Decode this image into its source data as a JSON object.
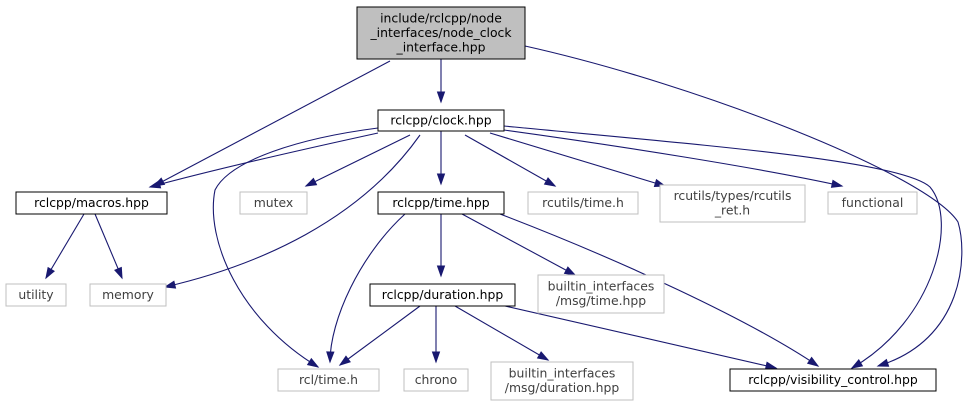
{
  "colors": {
    "edge": "#191970",
    "root_fill": "#bfbfbf",
    "local_border": "#000000",
    "external_border": "#bfbfbf",
    "text": "#000000"
  },
  "nodes": [
    {
      "id": "node_clock_interface",
      "kind": "root",
      "lines": [
        "include/rclcpp/node",
        "_interfaces/node_clock",
        "_interface.hpp"
      ]
    },
    {
      "id": "clock",
      "kind": "local",
      "lines": [
        "rclcpp/clock.hpp"
      ]
    },
    {
      "id": "macros",
      "kind": "local",
      "lines": [
        "rclcpp/macros.hpp"
      ]
    },
    {
      "id": "mutex",
      "kind": "external",
      "lines": [
        "mutex"
      ]
    },
    {
      "id": "time_hpp",
      "kind": "local",
      "lines": [
        "rclcpp/time.hpp"
      ]
    },
    {
      "id": "rcutils_time",
      "kind": "external",
      "lines": [
        "rcutils/time.h"
      ]
    },
    {
      "id": "rcutils_ret",
      "kind": "external",
      "lines": [
        "rcutils/types/rcutils",
        "_ret.h"
      ]
    },
    {
      "id": "functional",
      "kind": "external",
      "lines": [
        "functional"
      ]
    },
    {
      "id": "utility",
      "kind": "external",
      "lines": [
        "utility"
      ]
    },
    {
      "id": "memory",
      "kind": "external",
      "lines": [
        "memory"
      ]
    },
    {
      "id": "duration",
      "kind": "local",
      "lines": [
        "rclcpp/duration.hpp"
      ]
    },
    {
      "id": "bi_time",
      "kind": "external",
      "lines": [
        "builtin_interfaces",
        "/msg/time.hpp"
      ]
    },
    {
      "id": "rcl_time",
      "kind": "external",
      "lines": [
        "rcl/time.h"
      ]
    },
    {
      "id": "chrono",
      "kind": "external",
      "lines": [
        "chrono"
      ]
    },
    {
      "id": "bi_duration",
      "kind": "external",
      "lines": [
        "builtin_interfaces",
        "/msg/duration.hpp"
      ]
    },
    {
      "id": "visibility",
      "kind": "local",
      "lines": [
        "rclcpp/visibility_control.hpp"
      ]
    }
  ],
  "edges": [
    {
      "from": "node_clock_interface",
      "to": "clock"
    },
    {
      "from": "node_clock_interface",
      "to": "macros"
    },
    {
      "from": "node_clock_interface",
      "to": "visibility"
    },
    {
      "from": "clock",
      "to": "macros"
    },
    {
      "from": "clock",
      "to": "mutex"
    },
    {
      "from": "clock",
      "to": "time_hpp"
    },
    {
      "from": "clock",
      "to": "rcutils_time"
    },
    {
      "from": "clock",
      "to": "rcutils_ret"
    },
    {
      "from": "clock",
      "to": "functional"
    },
    {
      "from": "clock",
      "to": "memory"
    },
    {
      "from": "clock",
      "to": "rcl_time"
    },
    {
      "from": "clock",
      "to": "visibility"
    },
    {
      "from": "macros",
      "to": "utility"
    },
    {
      "from": "macros",
      "to": "memory"
    },
    {
      "from": "time_hpp",
      "to": "duration"
    },
    {
      "from": "time_hpp",
      "to": "bi_time"
    },
    {
      "from": "time_hpp",
      "to": "rcl_time"
    },
    {
      "from": "time_hpp",
      "to": "visibility"
    },
    {
      "from": "duration",
      "to": "rcl_time"
    },
    {
      "from": "duration",
      "to": "chrono"
    },
    {
      "from": "duration",
      "to": "bi_duration"
    },
    {
      "from": "duration",
      "to": "visibility"
    }
  ]
}
